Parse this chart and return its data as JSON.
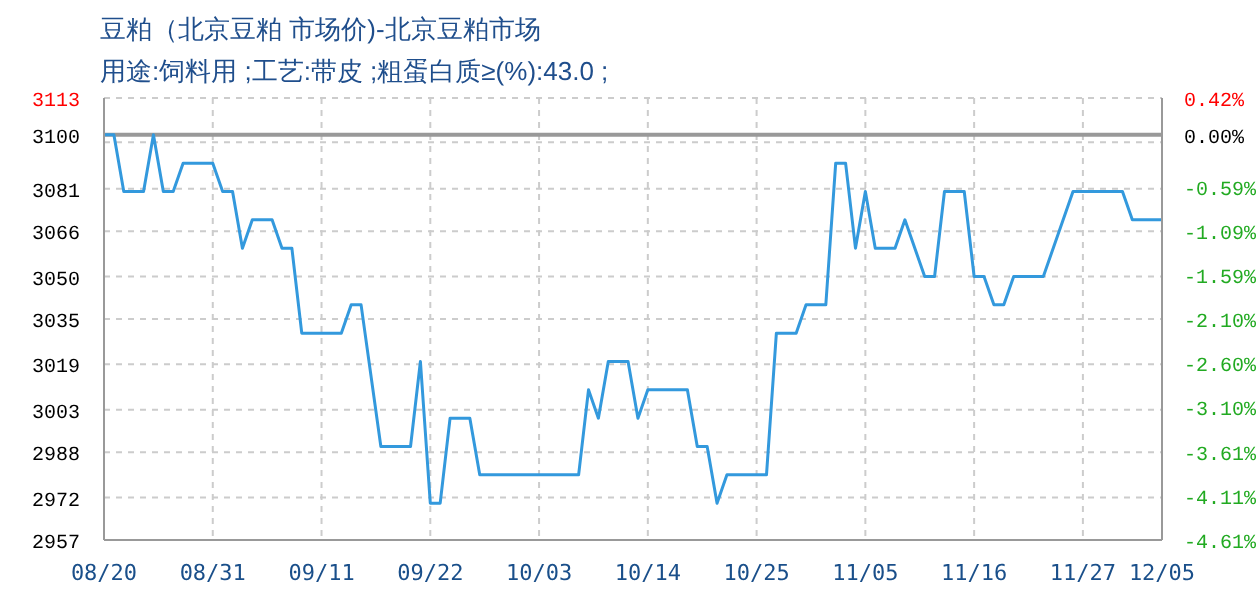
{
  "chart_data": {
    "type": "line",
    "title": "豆粕（北京豆粕 市场价)-北京豆粕市场",
    "subtitle": "用途:饲料用 ;工艺:带皮 ;粗蛋白质≥(%):43.0 ;",
    "x": [
      "--08-20",
      "--08-21",
      "--08-22",
      "--08-24",
      "--08-25",
      "--08-26",
      "--08-27",
      "--08-28",
      "--08-31",
      "--09-01",
      "--09-02",
      "--09-03",
      "--09-04",
      "--09-06",
      "--09-07",
      "--09-08",
      "--09-09",
      "--09-13",
      "--09-14",
      "--09-15",
      "--09-17",
      "--09-20",
      "--09-21",
      "--09-22",
      "--09-23",
      "--09-24",
      "--09-26",
      "--09-27",
      "--10-07",
      "--10-08",
      "--10-09",
      "--10-10",
      "--10-12",
      "--10-13",
      "--10-14",
      "--10-18",
      "--10-19",
      "--10-20",
      "--10-21",
      "--10-22",
      "--10-26",
      "--10-27",
      "--10-29",
      "--10-30",
      "--11-01",
      "--11-02",
      "--11-03",
      "--11-04",
      "--11-05",
      "--11-06",
      "--11-08",
      "--11-09",
      "--11-11",
      "--11-12",
      "--11-13",
      "--11-15",
      "--11-16",
      "--11-17",
      "--11-18",
      "--11-19",
      "--11-20",
      "--11-23",
      "--11-26",
      "--12-01",
      "--12-02",
      "--12-05"
    ],
    "series": [
      {
        "color": "#3399dd",
        "values": [
          3100,
          3100,
          3080,
          3080,
          3100,
          3080,
          3080,
          3090,
          3090,
          3080,
          3080,
          3060,
          3070,
          3070,
          3060,
          3060,
          3030,
          3030,
          3040,
          3040,
          2990,
          2990,
          3020,
          2970,
          2970,
          3000,
          3000,
          2980,
          2980,
          3010,
          3000,
          3020,
          3020,
          3000,
          3010,
          3010,
          2990,
          2990,
          2970,
          2980,
          2980,
          3030,
          3030,
          3040,
          3040,
          3090,
          3090,
          3060,
          3080,
          3060,
          3060,
          3070,
          3050,
          3050,
          3080,
          3080,
          3050,
          3050,
          3040,
          3040,
          3050,
          3050,
          3080,
          3080,
          3070,
          3070
        ]
      }
    ],
    "xlim": [
      "--08-20",
      "--12-05"
    ],
    "xticks": [
      {
        "value": "--08-20",
        "label": "08/20"
      },
      {
        "value": "--08-31",
        "label": "08/31"
      },
      {
        "value": "--09-11",
        "label": "09/11"
      },
      {
        "value": "--09-22",
        "label": "09/22"
      },
      {
        "value": "--10-03",
        "label": "10/03"
      },
      {
        "value": "--10-14",
        "label": "10/14"
      },
      {
        "value": "--10-25",
        "label": "10/25"
      },
      {
        "value": "--11-05",
        "label": "11/05"
      },
      {
        "value": "--11-16",
        "label": "11/16"
      },
      {
        "value": "--11-27",
        "label": "11/27"
      },
      {
        "value": "--12-05",
        "label": "12/05"
      }
    ],
    "ylim": [
      2957,
      3113
    ],
    "yticks": [
      2957,
      2972,
      2988,
      3003,
      3019,
      3035,
      3050,
      3066,
      3081,
      {
        "value": 3097.4,
        "label": null
      },
      3100,
      3113
    ],
    "y2lim": [
      -4.61,
      0.42
    ],
    "y2ticks": [
      {
        "value": -4.61,
        "label": "-4.61%"
      },
      {
        "value": -4.11,
        "label": "-4.11%"
      },
      {
        "value": -3.61,
        "label": "-3.61%"
      },
      {
        "value": -3.1,
        "label": "-3.10%"
      },
      {
        "value": -2.6,
        "label": "-2.60%"
      },
      {
        "value": -2.1,
        "label": "-2.10%"
      },
      {
        "value": -1.59,
        "label": "-1.59%"
      },
      {
        "value": -1.09,
        "label": "-1.09%"
      },
      {
        "value": -0.59,
        "label": "-0.59%"
      },
      {
        "value": 0,
        "label": "0.00%"
      },
      {
        "value": 0.42,
        "label": "0.42%"
      }
    ],
    "ref_lines": [
      {
        "axis": "y",
        "value": 3100,
        "color": "#999999"
      }
    ],
    "grid": true,
    "marker": "none",
    "line_style": "solid"
  }
}
